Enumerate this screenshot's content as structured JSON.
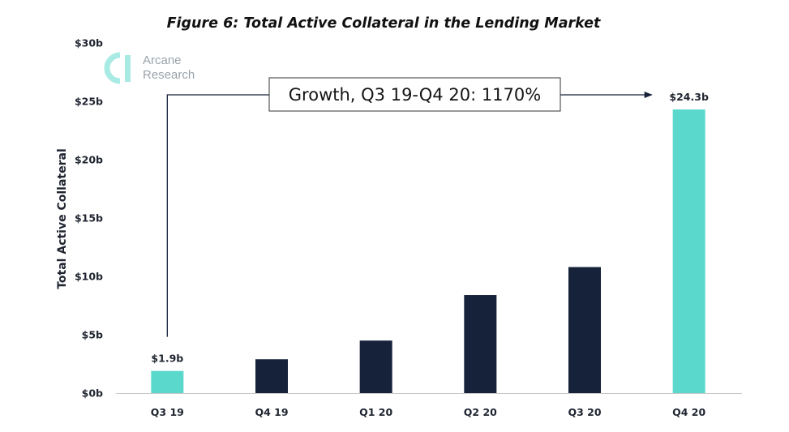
{
  "chart_data": {
    "type": "bar",
    "title": "Figure 6: Total Active Collateral in the Lending Market",
    "xlabel": "",
    "ylabel": "Total Active Collateral",
    "categories": [
      "Q3 19",
      "Q4 19",
      "Q1 20",
      "Q2 20",
      "Q3 20",
      "Q4 20"
    ],
    "values": [
      1.9,
      2.9,
      4.5,
      8.4,
      10.8,
      24.3
    ],
    "value_unit": "billion USD",
    "ylim": [
      0,
      30
    ],
    "yticks": [
      0,
      5,
      10,
      15,
      20,
      25,
      30
    ],
    "ytick_labels": [
      "$0b",
      "$5b",
      "$10b",
      "$15b",
      "$20b",
      "$25b",
      "$30b"
    ],
    "data_labels": [
      {
        "category": "Q3 19",
        "text": "$1.9b"
      },
      {
        "category": "Q4 20",
        "text": "$24.3b"
      }
    ],
    "annotation": {
      "text": "Growth, Q3 19-Q4 20: 1170%",
      "from_category": "Q3 19",
      "to_category": "Q4 20"
    },
    "grid": false,
    "colors": {
      "highlight": "#5ad8cc",
      "default": "#16223a",
      "axis": "#c8c8c8",
      "text": "#1f2430"
    },
    "highlight_categories": [
      "Q3 19",
      "Q4 20"
    ]
  },
  "logo": {
    "line1": "Arcane",
    "line2": "Research",
    "mark_color": "#a8ebe4",
    "text_color": "#9aa3ab"
  }
}
